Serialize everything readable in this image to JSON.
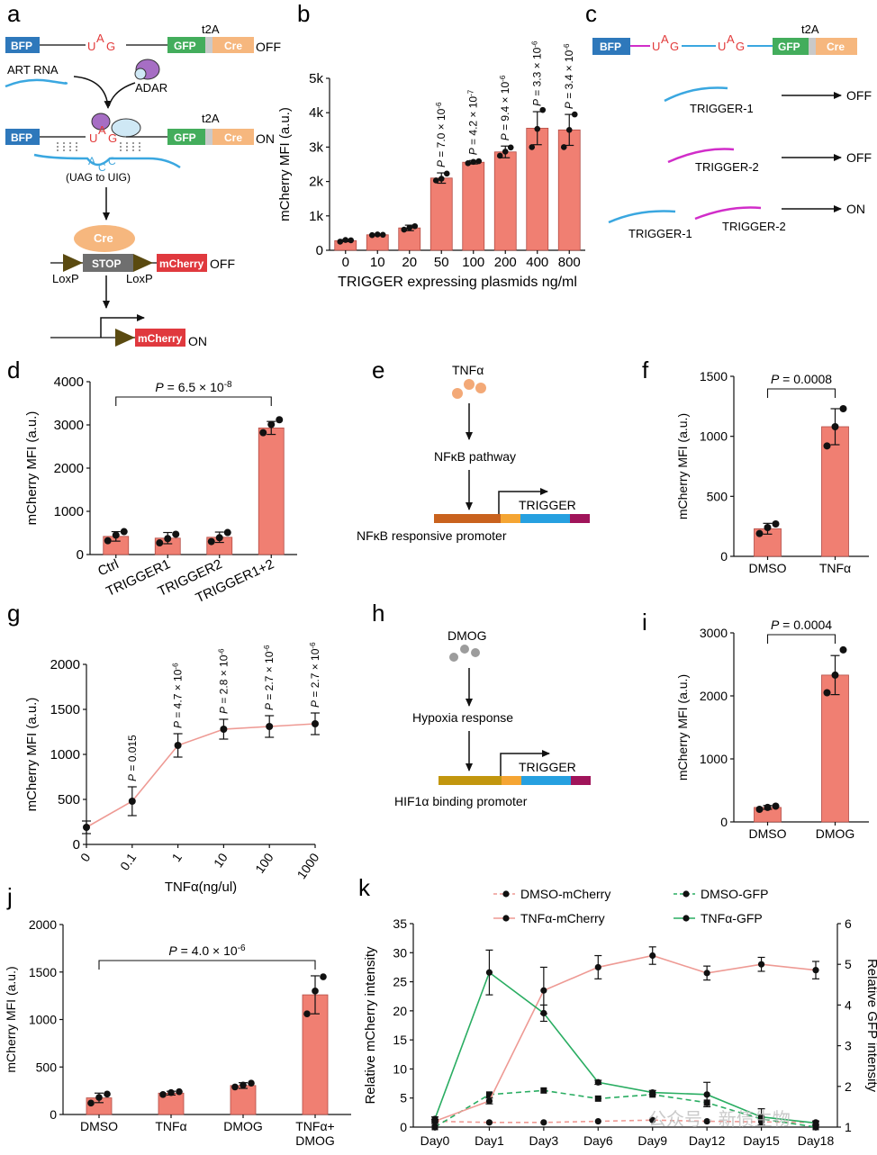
{
  "panel_labels": [
    "a",
    "b",
    "c",
    "d",
    "e",
    "f",
    "g",
    "h",
    "i",
    "j",
    "k"
  ],
  "colors": {
    "bar": "#f07f72",
    "bar_edge": "#b34c45",
    "line_pink": "#ee9a94",
    "line_green": "#2aad62",
    "bfp": "#2e78bb",
    "gfp": "#43ad5c",
    "cre": "#f6b77e",
    "t2a_gap": "#c9c9c9",
    "stop": "#6f6f6f",
    "mcherry": "#e0393e",
    "uag": "#e23a3a",
    "acc": "#42a7dd",
    "trigger1": "#3aa7e0",
    "trigger2": "#d12dc9",
    "adar": "#a66ec4",
    "art_rna": "#3aa7e0",
    "loxp": "#5a4a10",
    "tnf_dot": "#f3a977",
    "dmog_dot": "#9c9c9c",
    "promoter_nfkb": "#c9621e",
    "promoter_hif": "#c2960e",
    "seg_orange": "#f5a533",
    "seg_blue": "#26a0e0",
    "seg_purple": "#a0145a"
  },
  "panel_a": {
    "bfp": "BFP",
    "gfp": "GFP",
    "cre": "Cre",
    "t2a": "t2A",
    "u": "U",
    "a": "A",
    "g": "G",
    "c1": "C",
    "c2": "C",
    "ia": "A",
    "off": "OFF",
    "on": "ON",
    "art_rna": "ART RNA",
    "adar": "ADAR",
    "uag_to_uig": "(UAG  to UIG)",
    "cre_enzyme": "Cre",
    "stop": "STOP",
    "mcherry": "mCherry",
    "loxp_left": "LoxP",
    "loxp_right": "LoxP"
  },
  "panel_c": {
    "bfp": "BFP",
    "gfp": "GFP",
    "cre": "Cre",
    "t2a": "t2A",
    "u": "U",
    "a": "A",
    "g": "G",
    "trigger1": "TRIGGER-1",
    "trigger2": "TRIGGER-2",
    "off": "OFF",
    "on": "ON"
  },
  "panel_e": {
    "inducer": "TNFα",
    "pathway": "NFκB pathway",
    "trigger": "TRIGGER",
    "promoter": "NFκB responsive promoter"
  },
  "panel_h": {
    "inducer": "DMOG",
    "pathway": "Hypoxia response",
    "trigger": "TRIGGER",
    "promoter": "HIF1α binding promoter"
  },
  "chart_data": [
    {
      "id": "b",
      "type": "bar",
      "title": "",
      "xlabel": "TRIGGER expressing plasmids ng/ml",
      "ylabel": "mCherry MFI (a.u.)",
      "categories": [
        "0",
        "10",
        "20",
        "50",
        "100",
        "200",
        "400",
        "800"
      ],
      "values": [
        280,
        450,
        650,
        2100,
        2560,
        2860,
        3550,
        3500
      ],
      "errors": [
        30,
        20,
        80,
        150,
        50,
        170,
        480,
        450
      ],
      "points": [
        [
          250,
          300,
          290
        ],
        [
          440,
          460,
          450
        ],
        [
          600,
          660,
          700
        ],
        [
          2030,
          2080,
          2230
        ],
        [
          2530,
          2570,
          2590
        ],
        [
          2750,
          2870,
          2990
        ],
        [
          3000,
          3530,
          4080
        ],
        [
          3000,
          3500,
          3950
        ]
      ],
      "yticks": [
        0,
        1000,
        2000,
        3000,
        4000,
        5000
      ],
      "yticklabels": [
        "0",
        "1k",
        "2k",
        "3k",
        "4k",
        "5k"
      ],
      "ylim": [
        0,
        5000
      ],
      "annotations": [
        "",
        "",
        "",
        "P = 7.0 × 10⁻⁶",
        "P = 4.2 × 10⁻⁷",
        "P = 9.4 × 10⁻⁶",
        "P = 3.3 × 10⁻⁶",
        "P = 3.4 × 10⁻⁶"
      ]
    },
    {
      "id": "d",
      "type": "bar",
      "title": "",
      "xlabel": "",
      "ylabel": "mCherry MFI (a.u.)",
      "categories": [
        "Ctrl",
        "TRIGGER1",
        "TRIGGER2",
        "TRIGGER1+2"
      ],
      "values": [
        420,
        380,
        400,
        2930
      ],
      "errors": [
        110,
        130,
        120,
        150
      ],
      "points": [
        [
          320,
          450,
          530
        ],
        [
          270,
          370,
          470
        ],
        [
          300,
          390,
          510
        ],
        [
          2820,
          3010,
          3120
        ]
      ],
      "yticks": [
        0,
        1000,
        2000,
        3000,
        4000
      ],
      "yticklabels": [
        "0",
        "1000",
        "2000",
        "3000",
        "4000"
      ],
      "ylim": [
        0,
        4000
      ],
      "significance": "P = 6.5 × 10⁻⁸"
    },
    {
      "id": "f",
      "type": "bar",
      "title": "",
      "xlabel": "",
      "ylabel": "mCherry MFI (a.u.)",
      "categories": [
        "DMSO",
        "TNFα"
      ],
      "values": [
        230,
        1080
      ],
      "errors": [
        45,
        150
      ],
      "points": [
        [
          190,
          240,
          270
        ],
        [
          920,
          1080,
          1230
        ]
      ],
      "yticks": [
        0,
        500,
        1000,
        1500
      ],
      "yticklabels": [
        "0",
        "500",
        "1000",
        "1500"
      ],
      "ylim": [
        0,
        1500
      ],
      "significance": "P = 0.0008"
    },
    {
      "id": "g",
      "type": "line",
      "title": "",
      "xlabel": "TNFα(ng/ul)",
      "ylabel": "mCherry MFI (a.u.)",
      "categories": [
        "0",
        "0.1",
        "1",
        "10",
        "100",
        "1000"
      ],
      "values": [
        190,
        480,
        1100,
        1280,
        1310,
        1340
      ],
      "errors": [
        70,
        160,
        130,
        110,
        120,
        120
      ],
      "yticks": [
        0,
        500,
        1000,
        1500,
        2000
      ],
      "yticklabels": [
        "0",
        "500",
        "1000",
        "1500",
        "2000"
      ],
      "ylim": [
        0,
        2000
      ],
      "annotations": [
        "",
        "P = 0.015",
        "P = 4.7 × 10⁻⁶",
        "P = 2.8 × 10⁻⁶",
        "P = 2.7 × 10⁻⁶",
        "P = 2.7 × 10⁻⁶"
      ]
    },
    {
      "id": "i",
      "type": "bar",
      "title": "",
      "xlabel": "",
      "ylabel": "mCherry MFI (a.u.)",
      "categories": [
        "DMSO",
        "DMOG"
      ],
      "values": [
        230,
        2330
      ],
      "errors": [
        30,
        310
      ],
      "points": [
        [
          200,
          230,
          250
        ],
        [
          2050,
          2330,
          2730
        ]
      ],
      "yticks": [
        0,
        1000,
        2000,
        3000
      ],
      "yticklabels": [
        "0",
        "1000",
        "2000",
        "3000"
      ],
      "ylim": [
        0,
        3000
      ],
      "significance": "P = 0.0004"
    },
    {
      "id": "j",
      "type": "bar",
      "title": "",
      "xlabel": "",
      "ylabel": "mCherry MFI (a.u.)",
      "categories": [
        "DMSO",
        "TNFα",
        "DMOG",
        "TNFα+\nDMOG"
      ],
      "values": [
        175,
        225,
        305,
        1260
      ],
      "errors": [
        50,
        20,
        30,
        200
      ],
      "points": [
        [
          120,
          180,
          215
        ],
        [
          210,
          230,
          240
        ],
        [
          290,
          310,
          330
        ],
        [
          1060,
          1300,
          1450
        ]
      ],
      "yticks": [
        0,
        500,
        1000,
        1500,
        2000
      ],
      "yticklabels": [
        "0",
        "500",
        "1000",
        "1500",
        "2000"
      ],
      "ylim": [
        0,
        2000
      ],
      "significance": "P = 4.0 × 10⁻⁶"
    },
    {
      "id": "k",
      "type": "line",
      "title": "",
      "xlabel": "",
      "ylabel": "Relative mCherry intensity",
      "y2label": "Relative GFP intensity",
      "categories": [
        "Day0",
        "Day1",
        "Day3",
        "Day6",
        "Day9",
        "Day12",
        "Day15",
        "Day18"
      ],
      "series": [
        {
          "name": "DMSO-mCherry",
          "axis": "left",
          "values": [
            1.0,
            0.8,
            0.8,
            1.0,
            1.2,
            1.0,
            0.9,
            0.8
          ]
        },
        {
          "name": "DMSO-GFP",
          "axis": "right",
          "values": [
            1.0,
            1.8,
            1.9,
            1.7,
            1.8,
            1.6,
            1.2,
            1.0
          ]
        },
        {
          "name": "TNFα-mCherry",
          "axis": "left",
          "values": [
            1.0,
            4.5,
            23.5,
            27.5,
            29.5,
            26.5,
            28.0,
            27.0
          ],
          "errors": [
            0.3,
            0.5,
            4.0,
            2.0,
            1.5,
            1.2,
            1.2,
            1.5
          ]
        },
        {
          "name": "TNFα-GFP",
          "axis": "right",
          "values": [
            1.2,
            4.8,
            3.8,
            2.1,
            1.85,
            1.8,
            1.25,
            1.1
          ],
          "errors": [
            0.05,
            0.55,
            0.2,
            0.05,
            0.05,
            0.3,
            0.2,
            0.05
          ]
        }
      ],
      "yticks": [
        0,
        5,
        10,
        15,
        20,
        25,
        30,
        35
      ],
      "yticklabels": [
        "0",
        "5",
        "10",
        "15",
        "20",
        "25",
        "30",
        "35"
      ],
      "ylim": [
        0,
        35
      ],
      "y2ticks": [
        1,
        2,
        3,
        4,
        5,
        6
      ],
      "y2ticklabels": [
        "1",
        "2",
        "3",
        "4",
        "5",
        "6"
      ],
      "y2lim": [
        1,
        6
      ],
      "legend": "top",
      "watermark": "公众号 · 新债生物"
    }
  ]
}
